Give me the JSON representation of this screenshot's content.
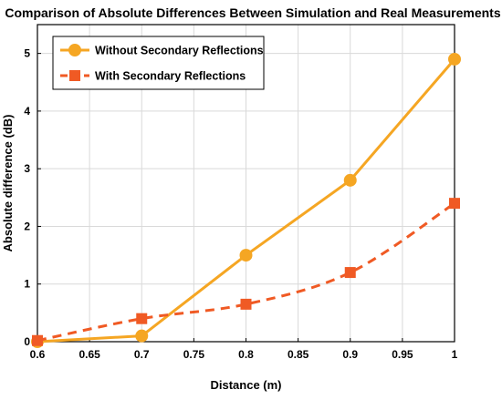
{
  "chart_data": {
    "type": "line",
    "title": "Comparison of Absolute Differences Between Simulation and Real Measurements",
    "xlabel": "Distance (m)",
    "ylabel": "Absolute difference (dB)",
    "xlim": [
      0.6,
      1.0
    ],
    "ylim": [
      0,
      5.5
    ],
    "xticks": [
      "0.6",
      "0.65",
      "0.7",
      "0.75",
      "0.8",
      "0.85",
      "0.9",
      "0.95",
      "1"
    ],
    "yticks": [
      "0",
      "1",
      "2",
      "3",
      "4",
      "5"
    ],
    "grid": true,
    "legend_position": "top-left",
    "series": [
      {
        "name": "Without Secondary Reflections",
        "color": "#f5a623",
        "marker": "circle",
        "line_style": "solid",
        "x": [
          0.6,
          0.7,
          0.8,
          0.9,
          1.0
        ],
        "values": [
          0.0,
          0.1,
          1.5,
          2.8,
          4.9
        ]
      },
      {
        "name": "With Secondary Reflections",
        "color": "#f05a24",
        "marker": "square",
        "line_style": "dashed",
        "x": [
          0.6,
          0.7,
          0.8,
          0.9,
          1.0
        ],
        "values": [
          0.02,
          0.4,
          0.65,
          1.2,
          2.4
        ]
      }
    ]
  }
}
